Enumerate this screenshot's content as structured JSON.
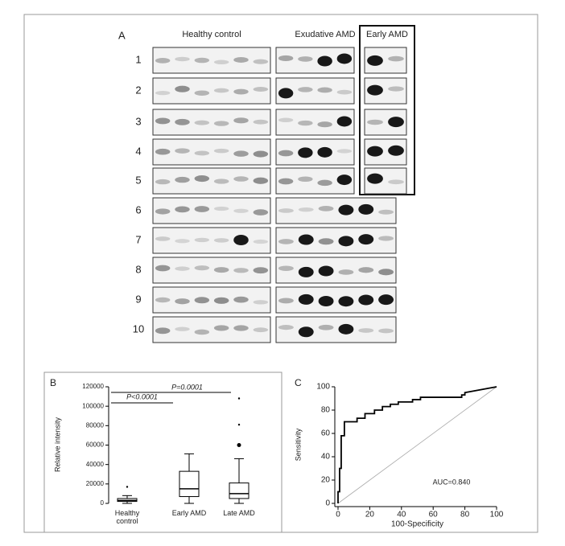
{
  "panel_a": {
    "label": "A",
    "groups": [
      "Healthy control",
      "Exudative AMD",
      "Early AMD"
    ],
    "rows": [
      "1",
      "2",
      "3",
      "4",
      "5",
      "6",
      "7",
      "8",
      "9",
      "10"
    ]
  },
  "chart_data": [
    {
      "type": "box",
      "label": "B",
      "y_label": "Relative intensity",
      "categories": [
        "Healthy control",
        "Early AMD",
        "Late AMD"
      ],
      "boxes": [
        {
          "min": 0,
          "q1": 2000,
          "median": 3000,
          "q3": 5000,
          "max": 8000,
          "outliers": [
            17000
          ]
        },
        {
          "min": 0,
          "q1": 7000,
          "median": 15000,
          "q3": 33000,
          "max": 51000,
          "outliers": []
        },
        {
          "min": 0,
          "q1": 5000,
          "median": 10000,
          "q3": 21000,
          "max": 46000,
          "outliers": [
            60000,
            81000,
            108000
          ]
        }
      ],
      "annotations": [
        "P<0.0001",
        "P=0.0001"
      ],
      "ylim": [
        0,
        120000
      ],
      "yticks": [
        0,
        20000,
        40000,
        60000,
        80000,
        100000,
        120000
      ],
      "color": "#000000"
    },
    {
      "type": "line",
      "label": "C",
      "x_label": "100-Specificity",
      "y_label": "Sensitivity",
      "annotation": "AUC=0.840",
      "x": [
        0,
        0,
        1,
        1,
        2,
        2,
        4,
        4,
        12,
        12,
        17,
        17,
        23,
        23,
        28,
        28,
        33,
        33,
        38,
        38,
        47,
        47,
        52,
        52,
        78,
        78,
        80,
        80,
        100
      ],
      "series": [
        {
          "color": "#000000",
          "values": [
            0,
            10,
            10,
            30,
            30,
            58,
            58,
            70,
            70,
            73,
            73,
            77,
            77,
            80,
            80,
            83,
            83,
            85,
            85,
            87,
            87,
            89,
            89,
            91,
            91,
            93,
            93,
            95,
            100
          ]
        }
      ],
      "xlim": [
        0,
        100
      ],
      "ylim": [
        0,
        100
      ],
      "xticks": [
        0,
        20,
        40,
        60,
        80,
        100
      ],
      "yticks": [
        0,
        20,
        40,
        60,
        80,
        100
      ]
    }
  ]
}
